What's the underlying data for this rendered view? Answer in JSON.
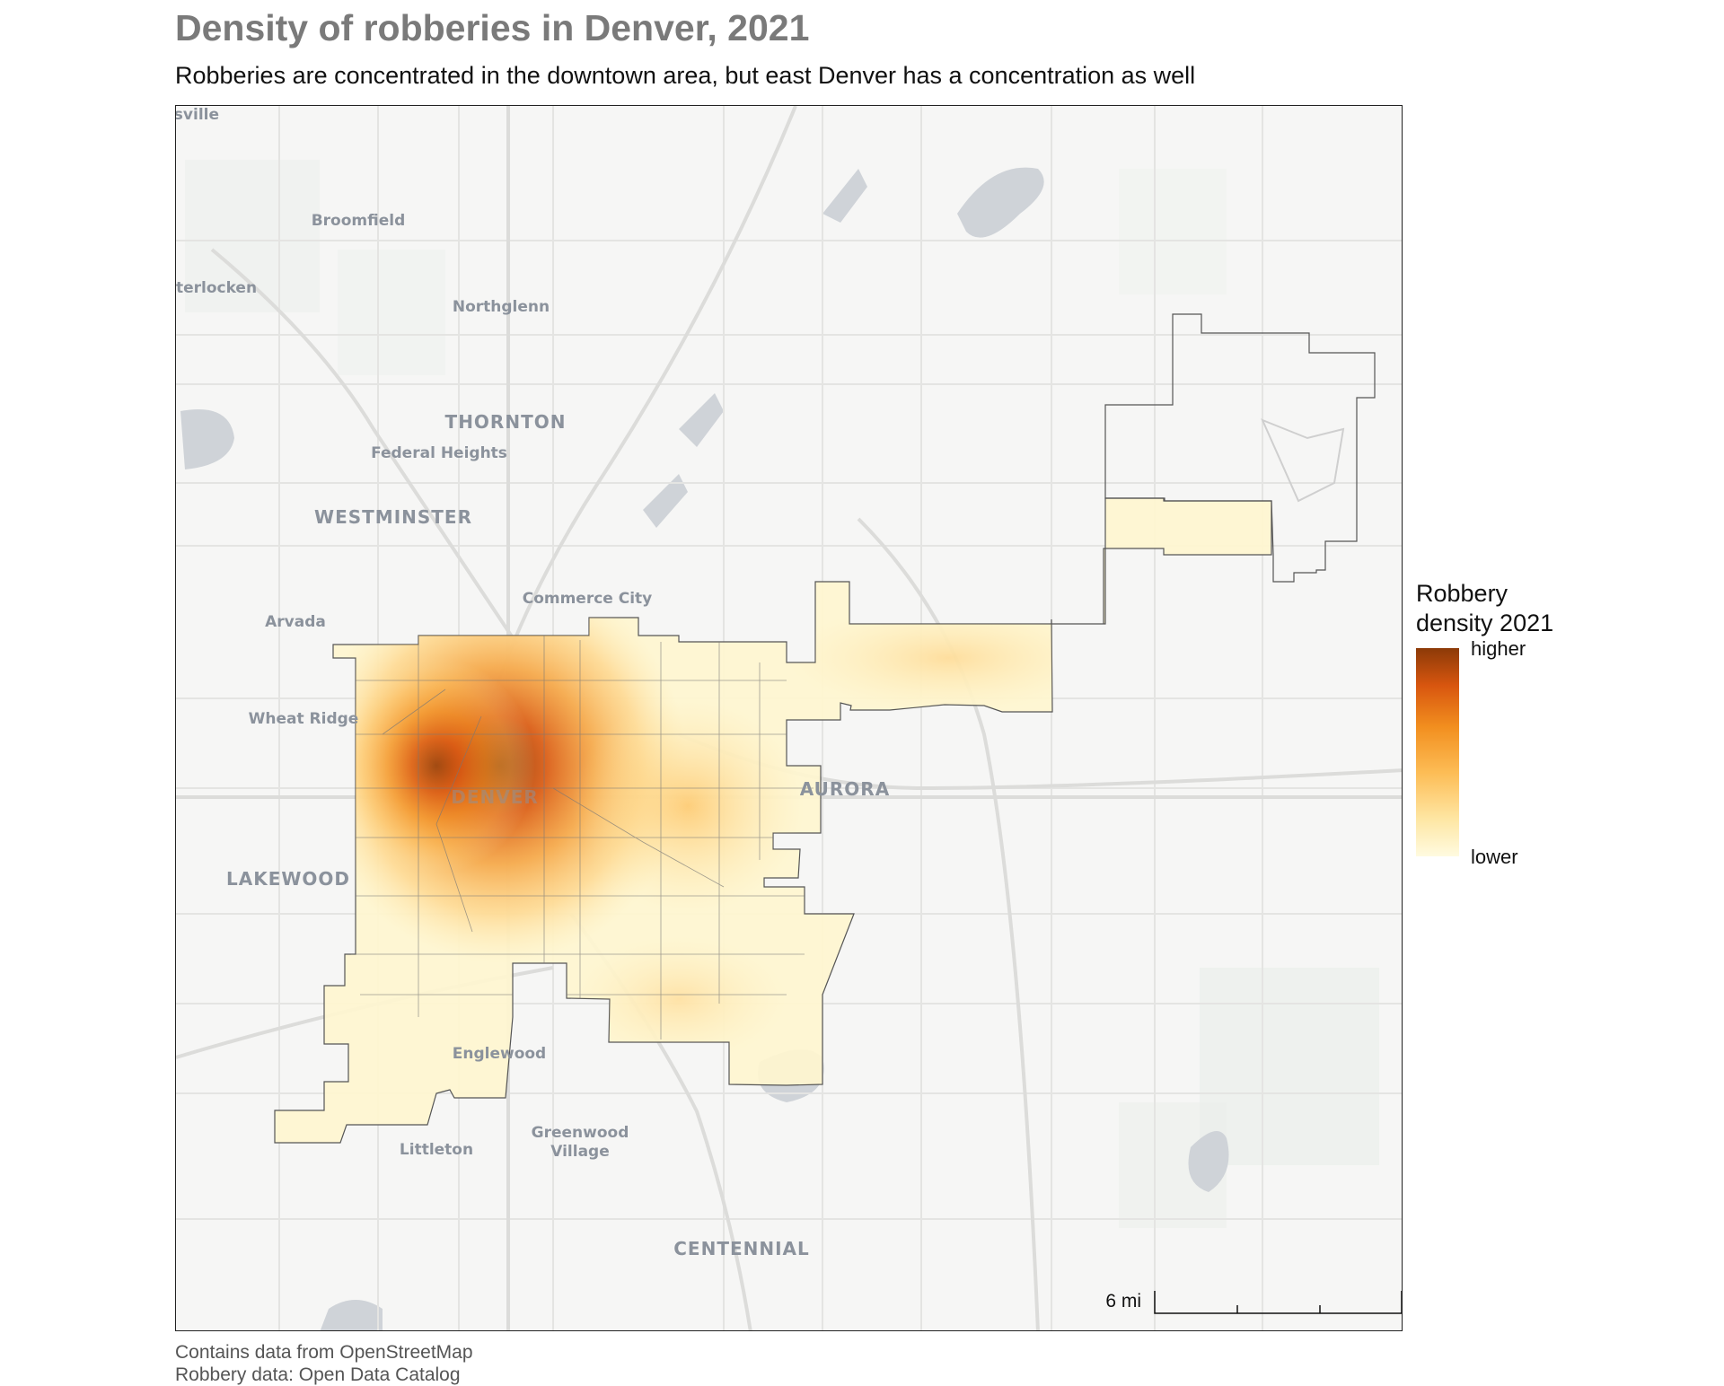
{
  "title": "Density of robberies in Denver, 2021",
  "subtitle": "Robberies are concentrated in the downtown area, but east Denver has a concentration as well",
  "legend": {
    "title_line1": "Robbery",
    "title_line2": "density 2021",
    "high_label": "higher",
    "low_label": "lower",
    "colors": [
      "#8c3a08",
      "#d8560f",
      "#f28f1f",
      "#fdbd56",
      "#fee6a3",
      "#fffbe0"
    ]
  },
  "scale_bar": {
    "label": "6 mi"
  },
  "caption": {
    "line1": "Contains data from OpenStreetMap",
    "line2": "Robbery data: Open Data Catalog"
  },
  "places": [
    {
      "id": "louisville",
      "label": "isville",
      "size": "small"
    },
    {
      "id": "broomfield",
      "label": "Broomfield",
      "size": "small"
    },
    {
      "id": "interlocken",
      "label": "terlocken",
      "size": "small"
    },
    {
      "id": "northglenn",
      "label": "Northglenn",
      "size": "small"
    },
    {
      "id": "thornton",
      "label": "THORNTON",
      "size": "big"
    },
    {
      "id": "federal-heights",
      "label": "Federal Heights",
      "size": "small"
    },
    {
      "id": "westminster",
      "label": "WESTMINSTER",
      "size": "big"
    },
    {
      "id": "commerce-city",
      "label": "Commerce City",
      "size": "small"
    },
    {
      "id": "arvada",
      "label": "Arvada",
      "size": "small"
    },
    {
      "id": "wheat-ridge",
      "label": "Wheat Ridge",
      "size": "small"
    },
    {
      "id": "denver",
      "label": "DENVER",
      "size": "big"
    },
    {
      "id": "aurora",
      "label": "AURORA",
      "size": "big"
    },
    {
      "id": "lakewood",
      "label": "LAKEWOOD",
      "size": "big"
    },
    {
      "id": "englewood",
      "label": "Englewood",
      "size": "small"
    },
    {
      "id": "greenwood-village-1",
      "label": "Greenwood",
      "size": "small"
    },
    {
      "id": "greenwood-village-2",
      "label": "Village",
      "size": "small"
    },
    {
      "id": "littleton",
      "label": "Littleton",
      "size": "small"
    },
    {
      "id": "centennial",
      "label": "CENTENNIAL",
      "size": "big"
    }
  ]
}
